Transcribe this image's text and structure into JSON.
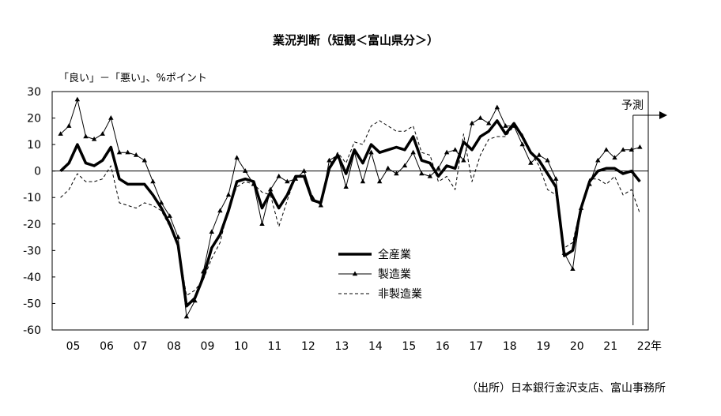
{
  "chart_data": {
    "type": "line",
    "title": "業況判断（短観＜富山県分＞）",
    "ylabel": "「良い」－「悪い」、%ポイント",
    "xlabel": "年",
    "source": "（出所）日本銀行金沢支店、富山事務所",
    "forecast_label": "予測",
    "ylim": [
      -60,
      30
    ],
    "yticks": [
      30,
      20,
      10,
      0,
      -10,
      -20,
      -30,
      -40,
      -50,
      -60
    ],
    "ytick_labels": [
      "30",
      "20",
      "10",
      "0",
      "-10",
      "-20",
      "-30",
      "-40",
      "-50",
      "-60"
    ],
    "xlim": [
      2004.75,
      2022.5
    ],
    "xtick_labels": [
      "05",
      "06",
      "07",
      "08",
      "09",
      "10",
      "11",
      "12",
      "13",
      "14",
      "15",
      "16",
      "17",
      "18",
      "19",
      "20",
      "21",
      "22"
    ],
    "xtick_years": [
      2005,
      2006,
      2007,
      2008,
      2009,
      2010,
      2011,
      2012,
      2013,
      2014,
      2015,
      2016,
      2017,
      2018,
      2019,
      2020,
      2021,
      2022
    ],
    "forecast_x": 2022.0,
    "legend_position": "center",
    "grid": false,
    "series": [
      {
        "name": "全産業",
        "style": "thick-solid",
        "x": [
          2005.0,
          2005.25,
          2005.5,
          2005.75,
          2006.0,
          2006.25,
          2006.5,
          2006.75,
          2007.0,
          2007.25,
          2007.5,
          2007.75,
          2008.0,
          2008.25,
          2008.5,
          2008.75,
          2009.0,
          2009.25,
          2009.5,
          2009.75,
          2010.0,
          2010.25,
          2010.5,
          2010.75,
          2011.0,
          2011.25,
          2011.5,
          2011.75,
          2012.0,
          2012.25,
          2012.5,
          2012.75,
          2013.0,
          2013.25,
          2013.5,
          2013.75,
          2014.0,
          2014.25,
          2014.5,
          2014.75,
          2015.0,
          2015.25,
          2015.5,
          2015.75,
          2016.0,
          2016.25,
          2016.5,
          2016.75,
          2017.0,
          2017.25,
          2017.5,
          2017.75,
          2018.0,
          2018.25,
          2018.5,
          2018.75,
          2019.0,
          2019.25,
          2019.5,
          2019.75,
          2020.0,
          2020.25,
          2020.5,
          2020.75,
          2021.0,
          2021.25,
          2021.5,
          2021.75,
          2022.0,
          2022.25
        ],
        "y": [
          0,
          3,
          10,
          3,
          2,
          4,
          9,
          -3,
          -5,
          -5,
          -5,
          -9,
          -14,
          -20,
          -28,
          -51,
          -48,
          -40,
          -29,
          -24,
          -15,
          -4,
          -3,
          -4,
          -14,
          -8,
          -14,
          -9,
          -2,
          -2,
          -11,
          -12,
          1,
          6,
          -1,
          8,
          3,
          10,
          7,
          8,
          9,
          8,
          13,
          4,
          3,
          -2,
          2,
          1,
          11,
          8,
          13,
          15,
          19,
          14,
          18,
          13,
          7,
          4,
          -1,
          -6,
          -32,
          -30,
          -14,
          -4,
          0,
          1,
          1,
          -1,
          0,
          -4
        ]
      },
      {
        "name": "製造業",
        "style": "thin-solid-triangle",
        "x": [
          2005.0,
          2005.25,
          2005.5,
          2005.75,
          2006.0,
          2006.25,
          2006.5,
          2006.75,
          2007.0,
          2007.25,
          2007.5,
          2007.75,
          2008.0,
          2008.25,
          2008.5,
          2008.75,
          2009.0,
          2009.25,
          2009.5,
          2009.75,
          2010.0,
          2010.25,
          2010.5,
          2010.75,
          2011.0,
          2011.25,
          2011.5,
          2011.75,
          2012.0,
          2012.25,
          2012.5,
          2012.75,
          2013.0,
          2013.25,
          2013.5,
          2013.75,
          2014.0,
          2014.25,
          2014.5,
          2014.75,
          2015.0,
          2015.25,
          2015.5,
          2015.75,
          2016.0,
          2016.25,
          2016.5,
          2016.75,
          2017.0,
          2017.25,
          2017.5,
          2017.75,
          2018.0,
          2018.25,
          2018.5,
          2018.75,
          2019.0,
          2019.25,
          2019.5,
          2019.75,
          2020.0,
          2020.25,
          2020.5,
          2020.75,
          2021.0,
          2021.25,
          2021.5,
          2021.75,
          2022.0,
          2022.25
        ],
        "y": [
          14,
          17,
          27,
          13,
          12,
          14,
          20,
          7,
          7,
          6,
          4,
          -4,
          -12,
          -17,
          -25,
          -55,
          -49,
          -38,
          -23,
          -15,
          -9,
          5,
          0,
          -5,
          -20,
          -7,
          -2,
          -4,
          -3,
          0,
          -10,
          -13,
          4,
          6,
          -6,
          7,
          -4,
          7,
          -4,
          1,
          -1,
          2,
          7,
          -1,
          -2,
          1,
          7,
          8,
          4,
          18,
          20,
          18,
          24,
          17,
          17,
          10,
          3,
          6,
          4,
          -3,
          -31,
          -37,
          -14,
          -5,
          4,
          8,
          5,
          8,
          8,
          9
        ]
      },
      {
        "name": "非製造業",
        "style": "dashed",
        "x": [
          2005.0,
          2005.25,
          2005.5,
          2005.75,
          2006.0,
          2006.25,
          2006.5,
          2006.75,
          2007.0,
          2007.25,
          2007.5,
          2007.75,
          2008.0,
          2008.25,
          2008.5,
          2008.75,
          2009.0,
          2009.25,
          2009.5,
          2009.75,
          2010.0,
          2010.25,
          2010.5,
          2010.75,
          2011.0,
          2011.25,
          2011.5,
          2011.75,
          2012.0,
          2012.25,
          2012.5,
          2012.75,
          2013.0,
          2013.25,
          2013.5,
          2013.75,
          2014.0,
          2014.25,
          2014.5,
          2014.75,
          2015.0,
          2015.25,
          2015.5,
          2015.75,
          2016.0,
          2016.25,
          2016.5,
          2016.75,
          2017.0,
          2017.25,
          2017.5,
          2017.75,
          2018.0,
          2018.25,
          2018.5,
          2018.75,
          2019.0,
          2019.25,
          2019.5,
          2019.75,
          2020.0,
          2020.25,
          2020.5,
          2020.75,
          2021.0,
          2021.25,
          2021.5,
          2021.75,
          2022.0,
          2022.25
        ],
        "y": [
          -10,
          -7,
          -1,
          -4,
          -4,
          -3,
          2,
          -12,
          -13,
          -14,
          -12,
          -13,
          -15,
          -21,
          -28,
          -47,
          -45,
          -41,
          -33,
          -27,
          -14,
          -6,
          -4,
          -5,
          -8,
          -9,
          -21,
          -11,
          -2,
          -2,
          -10,
          -13,
          2,
          7,
          3,
          11,
          10,
          17,
          19,
          17,
          15,
          15,
          17,
          7,
          6,
          -4,
          -2,
          -7,
          14,
          -4,
          6,
          12,
          13,
          13,
          17,
          14,
          7,
          2,
          -7,
          -9,
          -29,
          -27,
          -13,
          -3,
          -3,
          -5,
          -2,
          -9,
          -7,
          -16
        ]
      }
    ]
  }
}
